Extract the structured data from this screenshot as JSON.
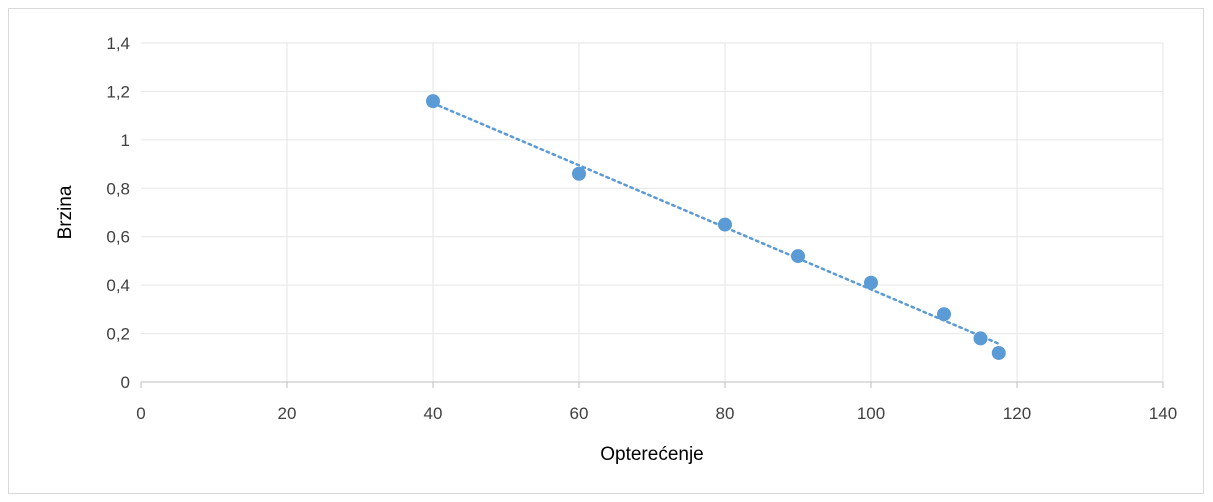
{
  "chart_data": {
    "type": "scatter",
    "xlabel": "Opterećenje",
    "ylabel": "Brzina",
    "xlim": [
      0,
      140
    ],
    "ylim": [
      0,
      1.4
    ],
    "x_ticks": [
      "0",
      "20",
      "40",
      "60",
      "80",
      "100",
      "120",
      "140"
    ],
    "y_ticks": [
      "0",
      "0,2",
      "0,4",
      "0,6",
      "0,8",
      "1",
      "1,2",
      "1,4"
    ],
    "grid": true,
    "legend": "none",
    "series": [
      {
        "points": [
          {
            "x": 40,
            "y": 1.16
          },
          {
            "x": 60,
            "y": 0.86
          },
          {
            "x": 80,
            "y": 0.65
          },
          {
            "x": 90,
            "y": 0.52
          },
          {
            "x": 100,
            "y": 0.41
          },
          {
            "x": 110,
            "y": 0.28
          },
          {
            "x": 115,
            "y": 0.18
          },
          {
            "x": 117.5,
            "y": 0.12
          }
        ],
        "color": "#5b9bd5",
        "trendline": {
          "type": "linear",
          "style": "dotted",
          "x_range": [
            40,
            117.5
          ]
        }
      }
    ]
  }
}
